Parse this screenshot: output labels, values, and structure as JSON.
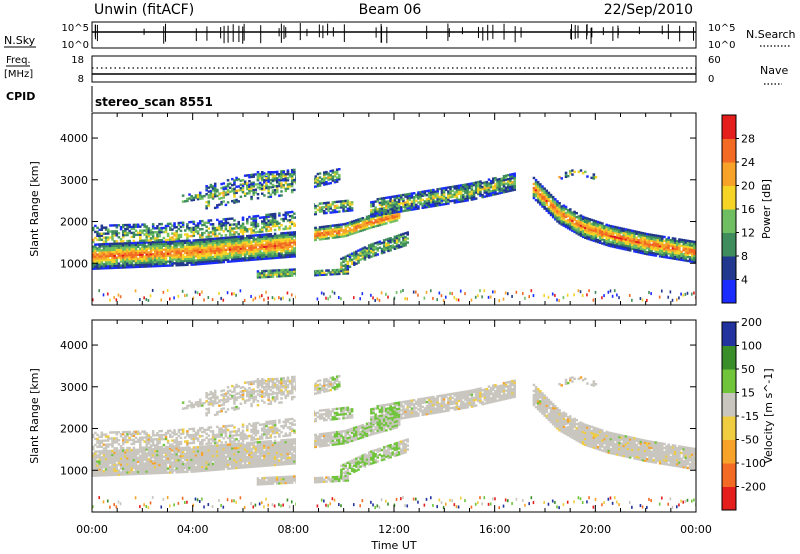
{
  "header": {
    "station": "Unwin (fitACF)",
    "beam": "Beam 06",
    "date": "22/Sep/2010"
  },
  "strip": {
    "nsky_label": "N.Sky",
    "nsky_ticks": [
      "10^5",
      "10^0"
    ],
    "nsearch_label": "N.Search",
    "nsearch_ticks": [
      "10^5",
      "10^0"
    ],
    "freq_label": "Freq.",
    "freq_unit": "[MHz]",
    "freq_ticks": [
      "18",
      "8"
    ],
    "nave_label": "Nave",
    "nave_ticks": [
      "60",
      "0"
    ],
    "cpid_label": "CPID",
    "cpid_value": "stereo_scan 8551"
  },
  "xaxis": {
    "label": "Time UT",
    "ticks": [
      "00:00",
      "04:00",
      "08:00",
      "12:00",
      "16:00",
      "20:00",
      "00:00"
    ]
  },
  "colors": {
    "power": [
      "#1a2cff",
      "#22388e",
      "#3f8c5c",
      "#6fbf62",
      "#f5d426",
      "#f7a32a",
      "#f26a24",
      "#e41d1d"
    ],
    "velocity": [
      "#e41d1d",
      "#f26a24",
      "#f7a32a",
      "#f0cc40",
      "#c8c6bf",
      "#6fc43a",
      "#3a8e2a",
      "#2233a0"
    ]
  },
  "chart_data": [
    {
      "type": "heatmap",
      "panel": "power",
      "ylabel": "Slant Range [km]",
      "ylim": [
        0,
        4600
      ],
      "xlim_hours": [
        0,
        24
      ],
      "yticks": [
        1000,
        2000,
        3000,
        4000
      ],
      "colorbar_label": "Power [dB]",
      "colorbar_ticks": [
        "4",
        "8",
        "12",
        "16",
        "20",
        "24",
        "28"
      ],
      "data_gap_hours": [
        8.1,
        8.7
      ],
      "echo_bands": [
        {
          "x": [
            0,
            2,
            4,
            6,
            8
          ],
          "y": [
            1250,
            1300,
            1350,
            1450,
            1500
          ],
          "power_db": 24
        },
        {
          "x": [
            8.7,
            10,
            11,
            12
          ],
          "y": [
            1700,
            1850,
            2050,
            2250
          ],
          "power_db": 16
        },
        {
          "x": [
            12,
            14,
            16,
            16.8
          ],
          "y": [
            2300,
            2550,
            2850,
            2950
          ],
          "power_db": 12
        },
        {
          "x": [
            17.5,
            18.5,
            19.5,
            20,
            22,
            24
          ],
          "y": [
            2700,
            2200,
            1900,
            1750,
            1450,
            1300
          ],
          "power_db": 24
        }
      ]
    },
    {
      "type": "heatmap",
      "panel": "velocity",
      "ylabel": "Slant Range [km]",
      "ylim": [
        0,
        4600
      ],
      "xlim_hours": [
        0,
        24
      ],
      "yticks": [
        1000,
        2000,
        3000,
        4000
      ],
      "colorbar_label": "Velocity [m s^-1]",
      "colorbar_ticks": [
        "-200",
        "-100",
        "-50",
        "-15",
        "15",
        "50",
        "100",
        "200"
      ],
      "data_gap_hours": [
        8.1,
        8.7
      ]
    }
  ]
}
